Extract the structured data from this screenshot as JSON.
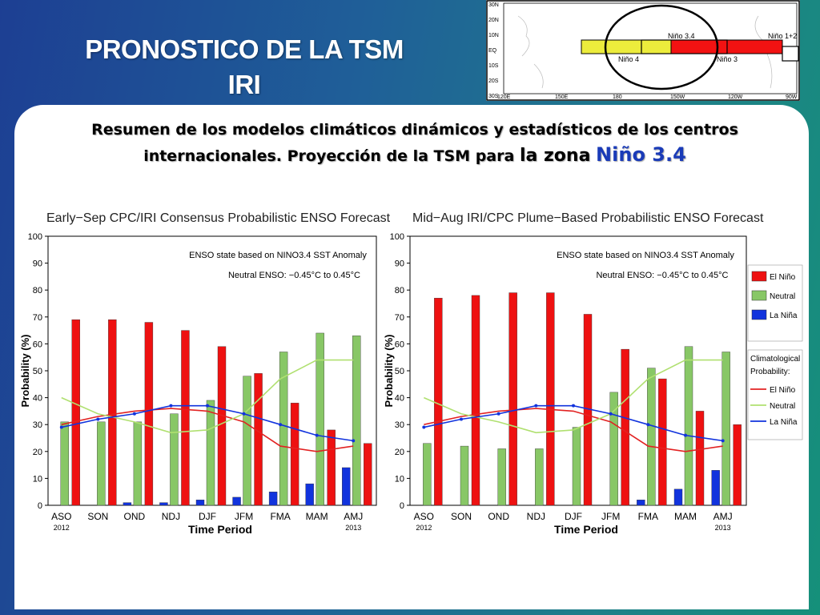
{
  "slide": {
    "title_line1": "PRONOSTICO DE LA TSM",
    "title_line2": "IRI",
    "subtitle_line1": "Resumen de los modelos climáticos dinámicos y estadísticos de los centros",
    "subtitle_line2": "internacionales. Proyección de la TSM para",
    "subtitle_zone_word": "la zona",
    "subtitle_zone": "Niño 3.4"
  },
  "map": {
    "lat_labels": [
      "30N",
      "20N",
      "10N",
      "EQ",
      "10S",
      "20S",
      "30S"
    ],
    "lon_labels": [
      "120E",
      "150E",
      "180",
      "150W",
      "120W",
      "90W"
    ],
    "region_labels": [
      "Niño 3.4",
      "Niño 4",
      "Niño 3",
      "Niño 1+2"
    ]
  },
  "colors": {
    "el_nino": "#ee1111",
    "neutral": "#88c766",
    "la_nina": "#1133dd",
    "clim_el_nino": "#e22222",
    "clim_neutral": "#b0e070",
    "clim_la_nina": "#1133dd"
  },
  "chart_data": [
    {
      "type": "bar",
      "title": "Early−Sep CPC/IRI Consensus Probabilistic ENSO Forecast",
      "annotation_1": "ENSO state based on NINO3.4 SST Anomaly",
      "annotation_2": "Neutral ENSO: −0.45°C to 0.45°C",
      "xlabel": "Time Period",
      "ylabel": "Probability (%)",
      "ylim": [
        0,
        100
      ],
      "yticks": [
        0,
        10,
        20,
        30,
        40,
        50,
        60,
        70,
        80,
        90,
        100
      ],
      "categories": [
        "ASO",
        "SON",
        "OND",
        "NDJ",
        "DJF",
        "JFM",
        "FMA",
        "MAM",
        "AMJ"
      ],
      "start_year": "2012",
      "end_year": "2013",
      "series": [
        {
          "name": "La Niña",
          "values": [
            0,
            0,
            1,
            1,
            2,
            3,
            5,
            8,
            14
          ]
        },
        {
          "name": "Neutral",
          "values": [
            31,
            31,
            31,
            34,
            39,
            48,
            57,
            64,
            63
          ]
        },
        {
          "name": "El Niño",
          "values": [
            69,
            69,
            68,
            65,
            59,
            49,
            38,
            28,
            23
          ]
        }
      ],
      "climatology": [
        {
          "name": "El Niño",
          "values": [
            30,
            33,
            35,
            36,
            35,
            31,
            22,
            20,
            22
          ]
        },
        {
          "name": "Neutral",
          "values": [
            40,
            34,
            31,
            27,
            28,
            34,
            47,
            54,
            54
          ]
        },
        {
          "name": "La Niña",
          "values": [
            29,
            32,
            34,
            37,
            37,
            34,
            30,
            26,
            24
          ]
        }
      ]
    },
    {
      "type": "bar",
      "title": "Mid−Aug IRI/CPC Plume−Based Probabilistic ENSO Forecast",
      "annotation_1": "ENSO state based on NINO3.4 SST Anomaly",
      "annotation_2": "Neutral ENSO: −0.45°C to 0.45°C",
      "xlabel": "Time Period",
      "ylabel": "Probability (%)",
      "ylim": [
        0,
        100
      ],
      "yticks": [
        0,
        10,
        20,
        30,
        40,
        50,
        60,
        70,
        80,
        90,
        100
      ],
      "categories": [
        "ASO",
        "SON",
        "OND",
        "NDJ",
        "DJF",
        "JFM",
        "FMA",
        "MAM",
        "AMJ"
      ],
      "start_year": "2012",
      "end_year": "2013",
      "series": [
        {
          "name": "La Niña",
          "values": [
            0,
            0,
            0,
            0,
            0,
            0,
            2,
            6,
            13
          ]
        },
        {
          "name": "Neutral",
          "values": [
            23,
            22,
            21,
            21,
            29,
            42,
            51,
            59,
            57
          ]
        },
        {
          "name": "El Niño",
          "values": [
            77,
            78,
            79,
            79,
            71,
            58,
            47,
            35,
            30
          ]
        }
      ],
      "climatology": [
        {
          "name": "El Niño",
          "values": [
            30,
            33,
            35,
            36,
            35,
            31,
            22,
            20,
            22
          ]
        },
        {
          "name": "Neutral",
          "values": [
            40,
            34,
            31,
            27,
            28,
            34,
            47,
            54,
            54
          ]
        },
        {
          "name": "La Niña",
          "values": [
            29,
            32,
            34,
            37,
            37,
            34,
            30,
            26,
            24
          ]
        }
      ],
      "legend_items": [
        "El Niño",
        "Neutral",
        "La Niña"
      ],
      "legend_clim_title_1": "Climatological",
      "legend_clim_title_2": "Probability:",
      "legend_clim_items": [
        "El Niño",
        "Neutral",
        "La Niña"
      ]
    }
  ]
}
